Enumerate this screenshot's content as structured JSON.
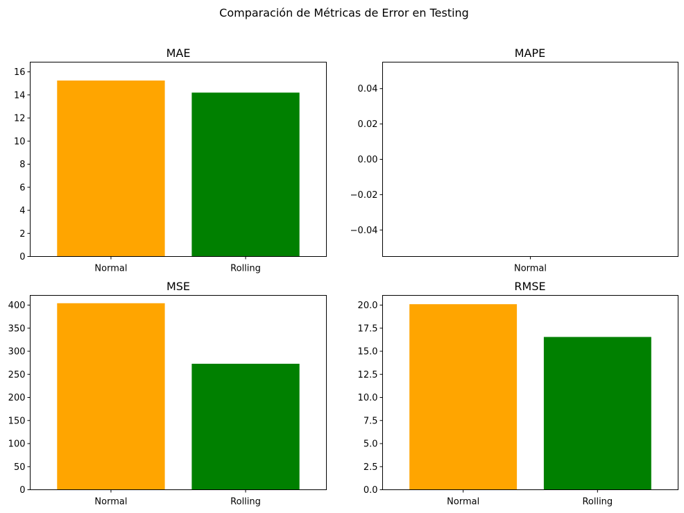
{
  "figure": {
    "suptitle": "Comparación de Métricas de Error en Testing"
  },
  "chart_data": [
    {
      "type": "bar",
      "title": "MAE",
      "categories": [
        "Normal",
        "Rolling"
      ],
      "values": [
        15.25,
        14.2
      ],
      "colors": [
        "#ffa500",
        "#008000"
      ],
      "ylim": [
        0,
        16
      ],
      "yticks": [
        0,
        2,
        4,
        6,
        8,
        10,
        12,
        14,
        16
      ],
      "ytick_labels": [
        "0",
        "2",
        "4",
        "6",
        "8",
        "10",
        "12",
        "14",
        "16"
      ],
      "grid": false
    },
    {
      "type": "bar",
      "title": "MAPE",
      "categories": [
        "Normal"
      ],
      "values": [
        null
      ],
      "colors": [
        "#ffa500"
      ],
      "ylim": [
        -0.055,
        0.055
      ],
      "yticks": [
        -0.04,
        -0.02,
        0.0,
        0.02,
        0.04
      ],
      "ytick_labels": [
        "−0.04",
        "−0.02",
        "0.00",
        "0.02",
        "0.04"
      ],
      "grid": false
    },
    {
      "type": "bar",
      "title": "MSE",
      "categories": [
        "Normal",
        "Rolling"
      ],
      "values": [
        404,
        273
      ],
      "colors": [
        "#ffa500",
        "#008000"
      ],
      "ylim": [
        0,
        400
      ],
      "yticks": [
        0,
        50,
        100,
        150,
        200,
        250,
        300,
        350,
        400
      ],
      "ytick_labels": [
        "0",
        "50",
        "100",
        "150",
        "200",
        "250",
        "300",
        "350",
        "400"
      ],
      "grid": false
    },
    {
      "type": "bar",
      "title": "RMSE",
      "categories": [
        "Normal",
        "Rolling"
      ],
      "values": [
        20.1,
        16.55
      ],
      "colors": [
        "#ffa500",
        "#008000"
      ],
      "ylim": [
        0,
        20
      ],
      "yticks": [
        0,
        2.5,
        5,
        7.5,
        10,
        12.5,
        15,
        17.5,
        20
      ],
      "ytick_labels": [
        "0.0",
        "2.5",
        "5.0",
        "7.5",
        "10.0",
        "12.5",
        "15.0",
        "17.5",
        "20.0"
      ],
      "grid": false
    }
  ]
}
